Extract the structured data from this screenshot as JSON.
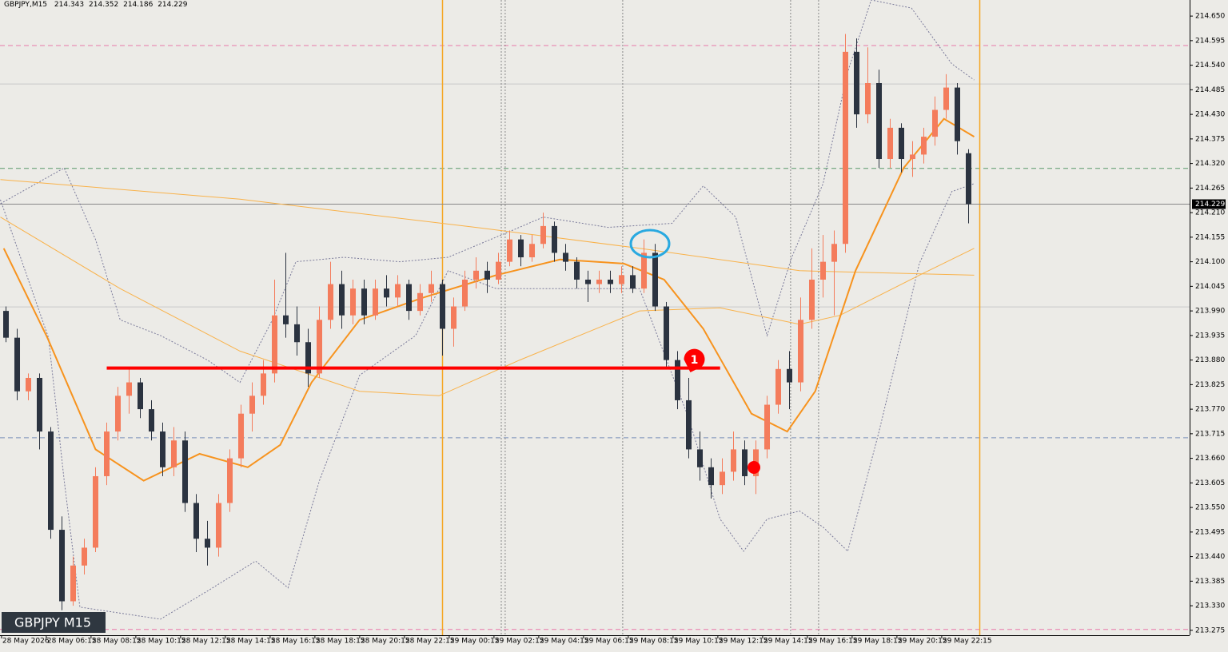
{
  "chart_data": {
    "type": "candlestick",
    "title": "GBPJPY,M15",
    "watermark": "GBPJPY M15",
    "bull_color": "#f47c5c",
    "bear_color": "#2b3340",
    "xlim": [
      -0.536,
      105.75
    ],
    "ylim": [
      213.264,
      214.686
    ],
    "yticks": [
      {
        "value": 214.65,
        "label": "214.650"
      },
      214.595,
      {
        "value": 214.54,
        "label": "214.540"
      },
      214.485,
      {
        "value": 214.43,
        "label": "214.430"
      },
      214.375,
      {
        "value": 214.32,
        "label": "214.320"
      },
      214.265,
      {
        "value": 214.21,
        "label": "214.210"
      },
      214.155,
      {
        "value": 214.1,
        "label": "214.100"
      },
      214.045,
      {
        "value": 213.99,
        "label": "213.990"
      },
      213.935,
      {
        "value": 213.88,
        "label": "213.880"
      },
      213.825,
      {
        "value": 213.77,
        "label": "213.770"
      },
      213.715,
      {
        "value": 213.66,
        "label": "213.660"
      },
      213.605,
      {
        "value": 213.55,
        "label": "213.550"
      },
      213.495,
      {
        "value": 213.44,
        "label": "213.440"
      },
      213.385,
      {
        "value": 213.33,
        "label": "213.330"
      },
      213.275
    ],
    "xticks": [
      {
        "value": -0.4,
        "label": "28 May 2026"
      },
      {
        "value": 3.6,
        "label": "28 May 06:15"
      },
      {
        "value": 7.6,
        "label": "28 May 08:15"
      },
      {
        "value": 11.6,
        "label": "28 May 10:15"
      },
      {
        "value": 15.6,
        "label": "28 May 12:15"
      },
      {
        "value": 19.6,
        "label": "28 May 14:15"
      },
      {
        "value": 23.6,
        "label": "28 May 16:15"
      },
      {
        "value": 27.6,
        "label": "28 May 18:15"
      },
      {
        "value": 31.6,
        "label": "28 May 20:15"
      },
      {
        "value": 35.6,
        "label": "28 May 22:15"
      },
      {
        "value": 39.6,
        "label": "29 May 00:15"
      },
      {
        "value": 43.6,
        "label": "29 May 02:15"
      },
      {
        "value": 47.6,
        "label": "29 May 04:15"
      },
      {
        "value": 51.6,
        "label": "29 May 06:15"
      },
      {
        "value": 55.6,
        "label": "29 May 08:15"
      },
      {
        "value": 59.6,
        "label": "29 May 10:15"
      },
      {
        "value": 63.6,
        "label": "29 May 12:15"
      },
      {
        "value": 67.6,
        "label": "29 May 14:15"
      },
      {
        "value": 71.6,
        "label": "29 May 16:15"
      },
      {
        "value": 75.6,
        "label": "29 May 18:15"
      },
      {
        "value": 79.6,
        "label": "29 May 20:15"
      },
      {
        "value": 83.6,
        "label": "29 May 22:15"
      }
    ],
    "candles": {
      "open": [
        213.99,
        213.93,
        213.81,
        213.84,
        213.72,
        213.5,
        213.34,
        213.42,
        213.46,
        213.62,
        213.72,
        213.8,
        213.83,
        213.77,
        213.72,
        213.64,
        213.7,
        213.56,
        213.48,
        213.46,
        213.56,
        213.66,
        213.76,
        213.8,
        213.85,
        213.98,
        213.96,
        213.92,
        213.85,
        213.97,
        214.05,
        213.98,
        214.04,
        213.98,
        214.04,
        214.02,
        214.05,
        213.99,
        214.03,
        214.05,
        213.95,
        214.0,
        214.06,
        214.08,
        214.06,
        214.1,
        214.15,
        214.11,
        214.14,
        214.18,
        214.12,
        214.1,
        214.06,
        214.05,
        214.06,
        214.05,
        214.07,
        214.04,
        214.12,
        214.0,
        213.88,
        213.79,
        213.68,
        213.64,
        213.6,
        213.63,
        213.68,
        213.62,
        213.68,
        213.78,
        213.86,
        213.83,
        213.97,
        214.06,
        214.1,
        214.14,
        214.57,
        214.43,
        214.5,
        214.33,
        214.4,
        214.33,
        214.34,
        214.38,
        214.44,
        214.49,
        214.343
      ],
      "high": [
        214.0,
        213.95,
        213.85,
        213.85,
        213.73,
        213.53,
        213.44,
        213.48,
        213.64,
        213.74,
        213.82,
        213.86,
        213.84,
        213.79,
        213.74,
        213.73,
        213.72,
        213.58,
        213.52,
        213.58,
        213.68,
        213.78,
        213.83,
        213.88,
        214.06,
        214.12,
        214.0,
        213.95,
        214.0,
        214.1,
        214.08,
        214.06,
        214.06,
        214.06,
        214.07,
        214.07,
        214.06,
        214.05,
        214.08,
        214.06,
        214.02,
        214.08,
        214.11,
        214.1,
        214.12,
        214.17,
        214.16,
        214.16,
        214.21,
        214.19,
        214.14,
        214.11,
        214.08,
        214.08,
        214.08,
        214.09,
        214.09,
        214.15,
        214.14,
        214.01,
        213.9,
        213.84,
        213.72,
        213.66,
        213.66,
        213.72,
        213.7,
        213.7,
        213.8,
        213.88,
        213.9,
        214.02,
        214.13,
        214.16,
        214.17,
        214.61,
        214.6,
        214.58,
        214.53,
        214.42,
        214.41,
        214.37,
        214.4,
        214.47,
        214.52,
        214.5,
        214.352
      ],
      "low": [
        213.92,
        213.79,
        213.79,
        213.68,
        213.48,
        213.32,
        213.33,
        213.4,
        213.45,
        213.6,
        213.7,
        213.76,
        213.75,
        213.7,
        213.62,
        213.62,
        213.54,
        213.45,
        213.42,
        213.44,
        213.54,
        213.64,
        213.72,
        213.78,
        213.83,
        213.93,
        213.89,
        213.82,
        213.84,
        213.95,
        213.95,
        213.96,
        213.96,
        213.97,
        214.0,
        214.0,
        213.97,
        213.98,
        214.01,
        213.89,
        213.91,
        213.99,
        214.04,
        214.03,
        214.05,
        214.09,
        214.09,
        214.1,
        214.13,
        214.1,
        214.08,
        214.04,
        214.01,
        214.03,
        214.03,
        214.03,
        214.03,
        214.03,
        213.99,
        213.86,
        213.77,
        213.66,
        213.61,
        213.57,
        213.58,
        213.61,
        213.6,
        213.58,
        213.66,
        213.76,
        213.77,
        213.81,
        213.95,
        214.02,
        213.98,
        214.12,
        214.4,
        214.41,
        214.31,
        214.31,
        214.3,
        214.29,
        214.32,
        214.36,
        214.42,
        214.34,
        214.186
      ],
      "close": [
        213.93,
        213.81,
        213.84,
        213.72,
        213.5,
        213.34,
        213.42,
        213.46,
        213.62,
        213.72,
        213.8,
        213.83,
        213.77,
        213.72,
        213.64,
        213.7,
        213.56,
        213.48,
        213.46,
        213.56,
        213.66,
        213.76,
        213.8,
        213.85,
        213.98,
        213.96,
        213.92,
        213.85,
        213.97,
        214.05,
        213.98,
        214.04,
        213.98,
        214.04,
        214.02,
        214.05,
        213.99,
        214.03,
        214.05,
        213.95,
        214.0,
        214.06,
        214.08,
        214.06,
        214.1,
        214.15,
        214.11,
        214.14,
        214.18,
        214.12,
        214.1,
        214.06,
        214.05,
        214.06,
        214.05,
        214.07,
        214.04,
        214.12,
        214.0,
        213.88,
        213.79,
        213.68,
        213.64,
        213.6,
        213.63,
        213.68,
        213.62,
        213.68,
        213.78,
        213.86,
        213.83,
        213.97,
        214.06,
        214.1,
        214.14,
        214.57,
        214.43,
        214.5,
        214.33,
        214.4,
        214.33,
        214.34,
        214.38,
        214.44,
        214.49,
        214.37,
        214.229
      ]
    },
    "lines": [
      {
        "color": "#7a7a9a",
        "width": 1,
        "dashed": true,
        "x": [
          -0.5,
          5.2,
          8.0,
          10.2,
          13.8,
          18.0,
          20.9,
          23.8,
          25.9,
          30.2,
          35.2,
          39.5,
          45.2,
          48.0,
          53.8,
          59.5,
          62.3,
          65.2,
          68.0,
          70.2,
          73.0,
          75.2,
          77.3,
          80.9,
          84.5,
          86.5
        ],
        "values": [
          214.23,
          214.31,
          214.15,
          213.97,
          213.935,
          213.88,
          213.83,
          213.97,
          214.1,
          214.11,
          214.1,
          214.11,
          214.17,
          214.2,
          214.177,
          214.186,
          214.27,
          214.2,
          213.935,
          214.11,
          214.275,
          214.525,
          214.686,
          214.668,
          214.543,
          214.507
        ]
      },
      {
        "color": "#7a7a9a",
        "width": 1,
        "dashed": true,
        "x": [
          -0.5,
          3.8,
          5.2,
          6.6,
          13.8,
          18.0,
          22.3,
          25.2,
          28.0,
          31.6,
          36.6,
          39.5,
          43.8,
          49.5,
          56.6,
          60.9,
          63.8,
          65.9,
          68.0,
          70.9,
          73.0,
          75.2,
          78.0,
          81.6,
          84.5,
          86.5
        ],
        "values": [
          214.239,
          213.93,
          213.61,
          213.327,
          213.3,
          213.363,
          213.43,
          213.37,
          213.61,
          213.846,
          213.935,
          214.08,
          214.04,
          214.04,
          214.04,
          213.756,
          213.524,
          213.452,
          213.524,
          213.542,
          213.506,
          213.452,
          213.72,
          214.096,
          214.257,
          214.275
        ]
      },
      {
        "color": "#f9b24a",
        "width": 1,
        "dashed": false,
        "x": [
          -0.5,
          20.9,
          42.3,
          56.6,
          70.9,
          86.5
        ],
        "values": [
          214.284,
          214.24,
          214.176,
          214.13,
          214.08,
          214.07
        ]
      },
      {
        "color": "#f9b24a",
        "width": 1,
        "dashed": false,
        "x": [
          -0.5,
          10.2,
          20.9,
          31.6,
          38.7,
          45.9,
          56.6,
          63.8,
          70.9,
          74.5,
          81.6,
          86.5
        ],
        "values": [
          214.2,
          214.04,
          213.9,
          213.81,
          213.8,
          213.88,
          213.99,
          213.997,
          213.96,
          213.98,
          214.07,
          214.13
        ]
      },
      {
        "color": "#f7931e",
        "width": 2,
        "dashed": false,
        "x": [
          -0.2,
          3.7,
          8.0,
          12.3,
          17.3,
          21.6,
          24.5,
          27.3,
          31.6,
          37.3,
          43.8,
          49.5,
          55.2,
          58.8,
          62.3,
          66.6,
          69.8,
          72.3,
          75.9,
          80.2,
          83.8,
          86.5
        ],
        "values": [
          214.13,
          213.93,
          213.68,
          213.61,
          213.67,
          213.64,
          213.69,
          213.83,
          213.97,
          214.02,
          214.07,
          214.105,
          214.096,
          214.06,
          213.95,
          213.76,
          213.72,
          213.81,
          214.08,
          214.31,
          214.42,
          214.38
        ]
      }
    ],
    "hlines": [
      {
        "value": 214.584,
        "color": "#e879a8",
        "dashed": true
      },
      {
        "value": 213.277,
        "color": "#e879a8",
        "dashed": true
      },
      {
        "value": 214.309,
        "color": "#5a9a6a",
        "dashed": true
      },
      {
        "value": 213.706,
        "color": "#7a8fb8",
        "dashed": true
      },
      {
        "value": 214.498,
        "color": "#c8c8c8",
        "dashed": false
      },
      {
        "value": 213.999,
        "color": "#c8c8c8",
        "dashed": false
      }
    ],
    "vlines": [
      {
        "x": 39.0,
        "color": "#f5a623",
        "dashed": false
      },
      {
        "x": 87.0,
        "color": "#f5a623",
        "dashed": false
      },
      {
        "x": 44.25,
        "color": "#888888",
        "dashed": true
      },
      {
        "x": 44.6,
        "color": "#888888",
        "dashed": true
      },
      {
        "x": 55.1,
        "color": "#888888",
        "dashed": true
      },
      {
        "x": 70.1,
        "color": "#888888",
        "dashed": true
      },
      {
        "x": 72.6,
        "color": "#888888",
        "dashed": true
      }
    ],
    "level": {
      "value": 213.862,
      "from": 9.0,
      "to": 63.8,
      "color": "#ff0000"
    },
    "annotations": [
      {
        "text": "1",
        "x": 61.5,
        "y": 213.881
      }
    ]
  }
}
